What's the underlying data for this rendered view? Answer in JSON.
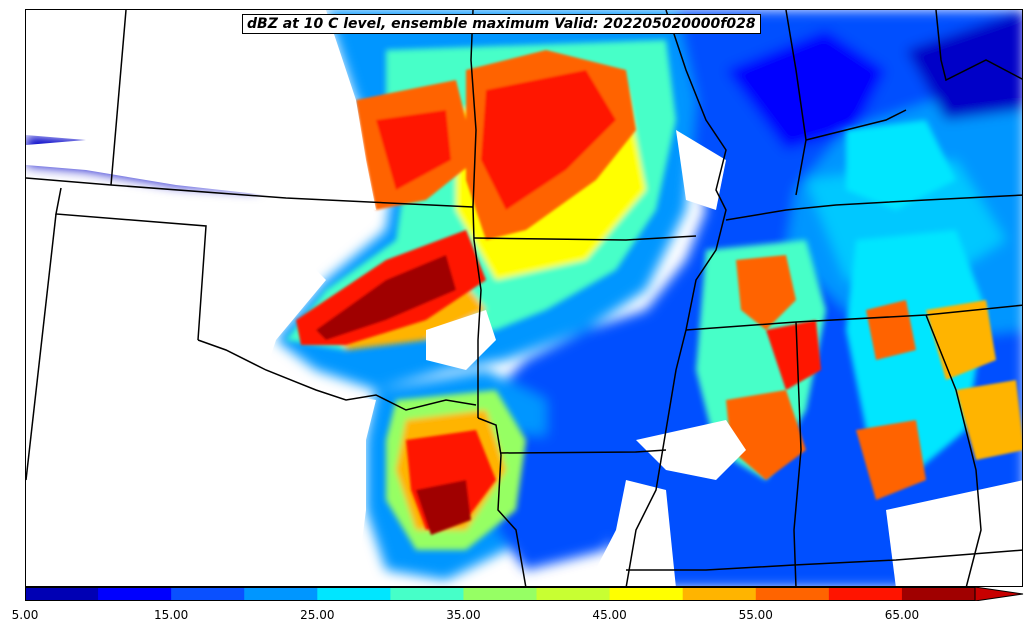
{
  "title": "dBZ at 10 C level, ensemble maximum Valid: 202205020000f028",
  "colorbar": {
    "levels": [
      5,
      10,
      15,
      20,
      25,
      30,
      35,
      40,
      45,
      50,
      55,
      60,
      65,
      70
    ],
    "colors": [
      "#0000b4",
      "#0000ff",
      "#0a50ff",
      "#0096ff",
      "#00e6ff",
      "#46ffc8",
      "#96ff64",
      "#c8ff32",
      "#ffff00",
      "#ffb400",
      "#ff6400",
      "#ff1400",
      "#a00000"
    ],
    "extend_color": "#c80000",
    "tick_labels": [
      "5.00",
      "15.00",
      "25.00",
      "35.00",
      "45.00",
      "55.00",
      "65.00"
    ]
  },
  "map_background": "#ffffff",
  "border_color": "#000000"
}
